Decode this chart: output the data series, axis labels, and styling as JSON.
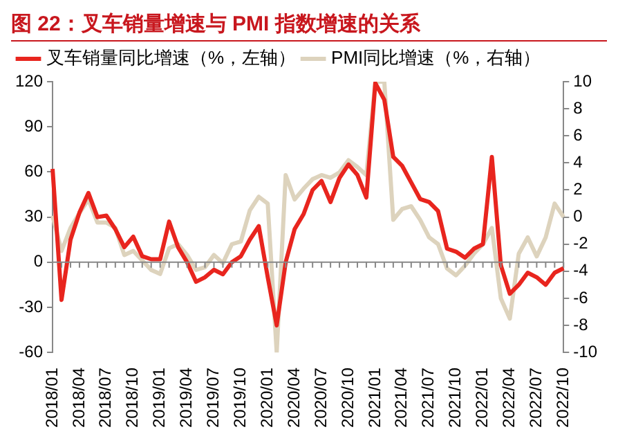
{
  "chart_data": {
    "type": "line",
    "title": "图 22：叉车销量增速与 PMI 指数增速的关系",
    "categories": [
      "2018/01",
      null,
      null,
      "2018/04",
      null,
      null,
      "2018/07",
      null,
      null,
      "2018/10",
      null,
      null,
      "2019/01",
      null,
      null,
      "2019/04",
      null,
      null,
      "2019/07",
      null,
      null,
      "2019/10",
      null,
      null,
      "2020/01",
      null,
      null,
      "2020/04",
      null,
      null,
      "2020/07",
      null,
      null,
      "2020/10",
      null,
      null,
      "2021/01",
      null,
      null,
      "2021/04",
      null,
      null,
      "2021/07",
      null,
      null,
      "2021/10",
      null,
      null,
      "2022/01",
      null,
      null,
      "2022/04",
      null,
      null,
      "2022/07",
      null,
      null,
      "2022/10"
    ],
    "series": [
      {
        "name": "叉车销量同比增速（%，左轴）",
        "color": "#e8251e",
        "values": [
          62,
          -25,
          15,
          33,
          46,
          30,
          31,
          22,
          10,
          17,
          4,
          2,
          2,
          27,
          10,
          0,
          -13,
          -10,
          -5,
          -8,
          0,
          4,
          15,
          24,
          -10,
          -42,
          0,
          22,
          32,
          48,
          54,
          40,
          56,
          65,
          58,
          43,
          119,
          108,
          70,
          64,
          53,
          42,
          40,
          34,
          9,
          7,
          3,
          9,
          12,
          70,
          -2,
          -21,
          -15,
          -7,
          -10,
          -15,
          -7,
          -4
        ]
      },
      {
        "name": "PMI同比增速（%，右轴）",
        "color": "#ddd3bd",
        "axis": "y2",
        "values": [
          0.1,
          -2.5,
          -0.8,
          0.3,
          1.3,
          -0.4,
          -0.4,
          -0.8,
          -2.8,
          -2.5,
          -3.2,
          -3.9,
          -4.2,
          -2.3,
          -2,
          -2.8,
          -3.9,
          -3.7,
          -2.8,
          -3.4,
          -2,
          -1.8,
          0.5,
          1.5,
          1,
          -10,
          3.1,
          1.3,
          2.1,
          2.8,
          3.1,
          2.9,
          3.3,
          4.2,
          3.7,
          3.1,
          10,
          10,
          -0.2,
          0.6,
          0.8,
          -0.2,
          -1.5,
          -2,
          -3.8,
          -4.3,
          -3.6,
          -2.7,
          -2,
          -0.8,
          -6,
          -7.5,
          -2.7,
          -1.5,
          -2.9,
          -1.5,
          1,
          0
        ]
      }
    ],
    "ylim": [
      -60,
      120
    ],
    "yticks": [
      -60,
      -30,
      0,
      30,
      60,
      90,
      120
    ],
    "y2lim": [
      -10,
      10
    ],
    "y2ticks": [
      -10,
      -8,
      -6,
      -4,
      -2,
      0,
      2,
      4,
      6,
      8,
      10
    ],
    "legend": "top",
    "marker": "none"
  }
}
